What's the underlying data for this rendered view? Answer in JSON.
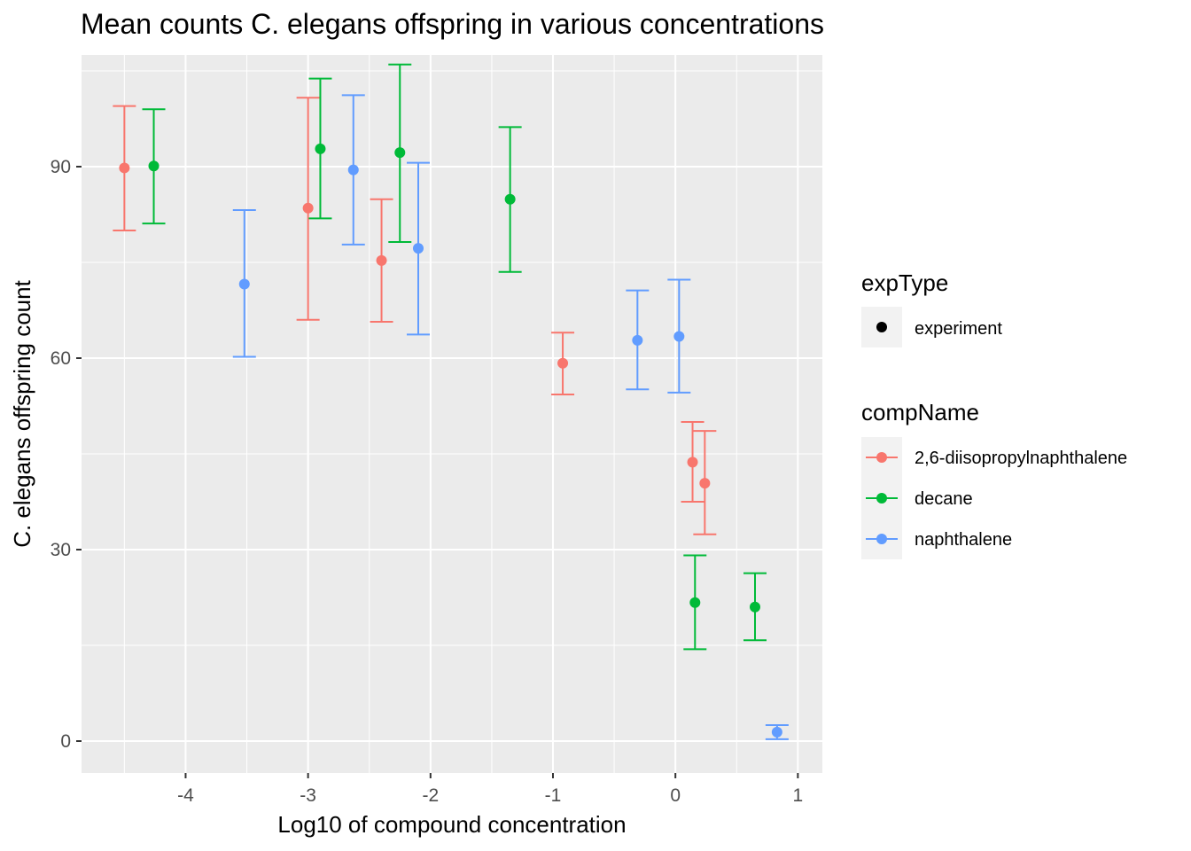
{
  "chart_data": {
    "type": "scatter",
    "title": "Mean counts C. elegans offspring in various concentrations",
    "xlabel": "Log10 of compound concentration",
    "ylabel": "C. elegans offspring count",
    "xlim": [
      -4.85,
      1.2
    ],
    "ylim": [
      -5,
      107.5
    ],
    "x_ticks": [
      -4,
      -3,
      -2,
      -1,
      0,
      1
    ],
    "x_tick_labels": [
      "-4",
      "-3",
      "-2",
      "-1",
      "0",
      "1"
    ],
    "y_ticks": [
      0,
      30,
      60,
      90
    ],
    "y_tick_labels": [
      "0",
      "30",
      "60",
      "90"
    ],
    "grid": true,
    "legends": {
      "expType": {
        "title": "expType",
        "entries": [
          "experiment"
        ]
      },
      "compName": {
        "title": "compName",
        "entries": [
          "2,6-diisopropylnaphthalene",
          "decane",
          "naphthalene"
        ]
      }
    },
    "colors": {
      "2,6-diisopropylnaphthalene": "#F8766D",
      "decane": "#00BA38",
      "naphthalene": "#619CFF"
    },
    "series": [
      {
        "name": "2,6-diisopropylnaphthalene",
        "points": [
          {
            "x": -4.5,
            "y": 89.8,
            "ymin": 80.0,
            "ymax": 99.5
          },
          {
            "x": -3.0,
            "y": 83.5,
            "ymin": 66.0,
            "ymax": 100.8
          },
          {
            "x": -2.4,
            "y": 75.3,
            "ymin": 65.7,
            "ymax": 84.9
          },
          {
            "x": -0.92,
            "y": 59.2,
            "ymin": 54.3,
            "ymax": 64.0
          },
          {
            "x": 0.14,
            "y": 43.7,
            "ymin": 37.5,
            "ymax": 50.0
          },
          {
            "x": 0.24,
            "y": 40.4,
            "ymin": 32.4,
            "ymax": 48.6
          }
        ]
      },
      {
        "name": "decane",
        "points": [
          {
            "x": -4.26,
            "y": 90.1,
            "ymin": 81.1,
            "ymax": 99.0
          },
          {
            "x": -2.9,
            "y": 92.8,
            "ymin": 81.9,
            "ymax": 103.8
          },
          {
            "x": -2.25,
            "y": 92.2,
            "ymin": 78.2,
            "ymax": 106.0
          },
          {
            "x": -1.35,
            "y": 84.9,
            "ymin": 73.5,
            "ymax": 96.2
          },
          {
            "x": 0.16,
            "y": 21.7,
            "ymin": 14.4,
            "ymax": 29.1
          },
          {
            "x": 0.65,
            "y": 21.0,
            "ymin": 15.8,
            "ymax": 26.3
          }
        ]
      },
      {
        "name": "naphthalene",
        "points": [
          {
            "x": -3.52,
            "y": 71.6,
            "ymin": 60.2,
            "ymax": 83.2
          },
          {
            "x": -2.63,
            "y": 89.5,
            "ymin": 77.8,
            "ymax": 101.2
          },
          {
            "x": -2.1,
            "y": 77.2,
            "ymin": 63.7,
            "ymax": 90.6
          },
          {
            "x": -0.31,
            "y": 62.8,
            "ymin": 55.1,
            "ymax": 70.6
          },
          {
            "x": 0.03,
            "y": 63.4,
            "ymin": 54.6,
            "ymax": 72.3
          },
          {
            "x": 0.83,
            "y": 1.4,
            "ymin": 0.3,
            "ymax": 2.5
          }
        ]
      }
    ]
  }
}
